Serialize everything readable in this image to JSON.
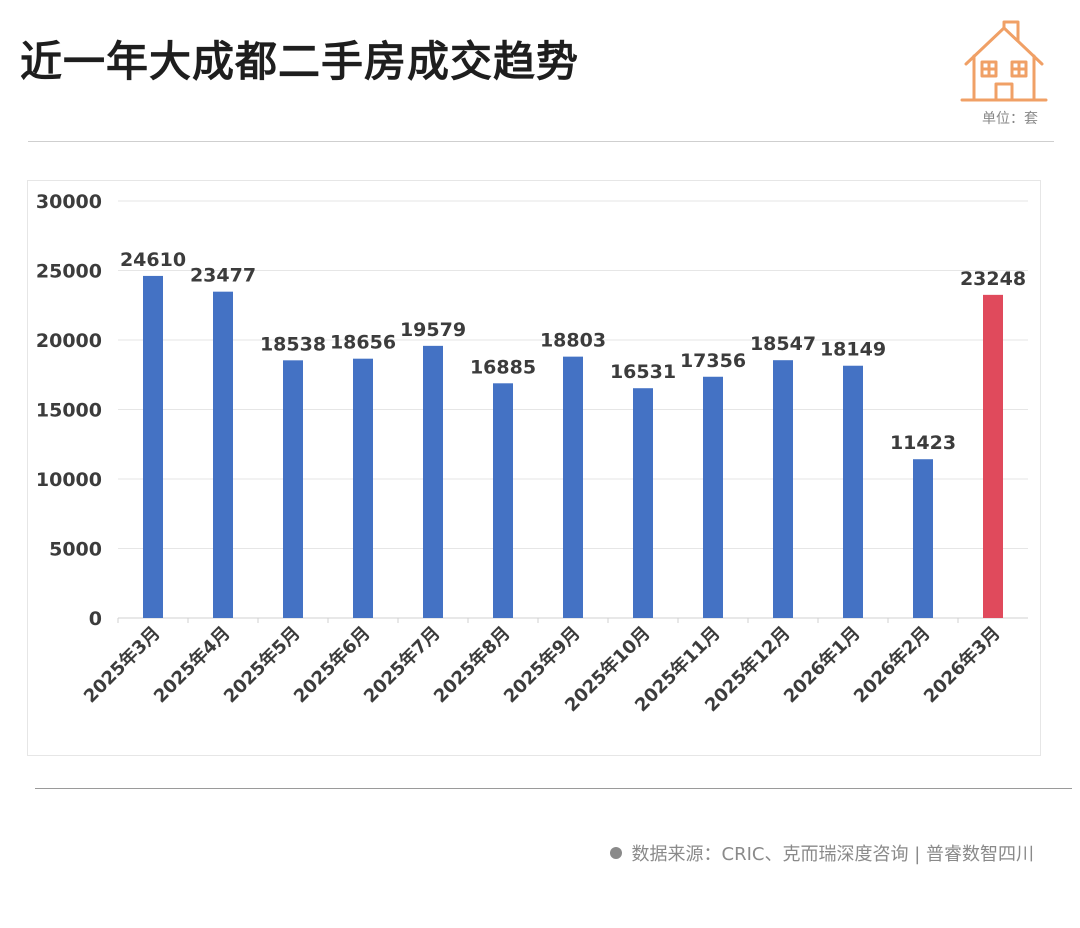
{
  "title": "近一年大成都二手房成交趋势",
  "unit_label": "单位：套",
  "source": "数据来源：CRIC、克而瑞深度咨询 | 普睿数智四川",
  "icon": "house-icon",
  "colors": {
    "bar": "#4472c4",
    "highlight_bar": "#e04a5c",
    "icon": "#f0a066",
    "grid": "#e6e6e6"
  },
  "chart_data": {
    "type": "bar",
    "title": "近一年大成都二手房成交趋势",
    "categories": [
      "2025年3月",
      "2025年4月",
      "2025年5月",
      "2025年6月",
      "2025年7月",
      "2025年8月",
      "2025年9月",
      "2025年10月",
      "2025年11月",
      "2025年12月",
      "2026年1月",
      "2026年2月",
      "2026年3月"
    ],
    "values": [
      24610,
      23477,
      18538,
      18656,
      19579,
      16885,
      18803,
      16531,
      17356,
      18547,
      18149,
      11423,
      23248
    ],
    "highlight_index": 12,
    "ylim": [
      0,
      30000
    ],
    "yticks": [
      0,
      5000,
      10000,
      15000,
      20000,
      25000,
      30000
    ],
    "grid": true,
    "data_labels": true,
    "xlabel": "",
    "ylabel": ""
  }
}
